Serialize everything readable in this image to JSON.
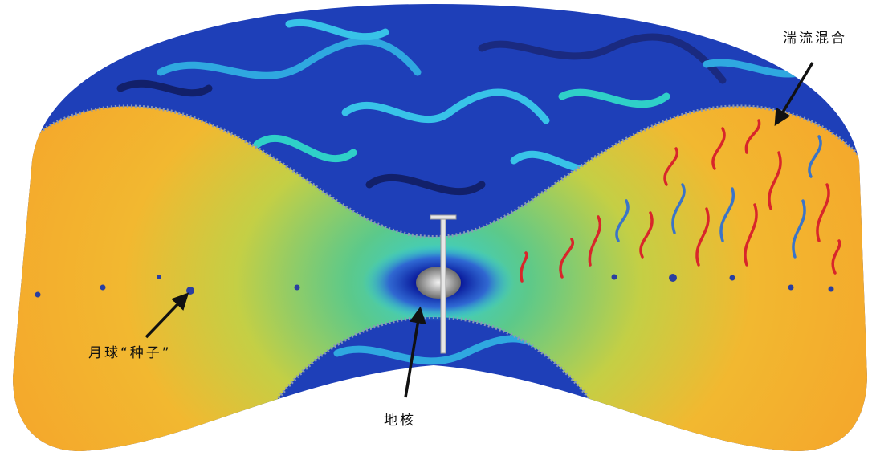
{
  "labels": {
    "turbulence": "湍流混合",
    "moon_seeds": "月球“种子”",
    "core": "地核"
  }
}
